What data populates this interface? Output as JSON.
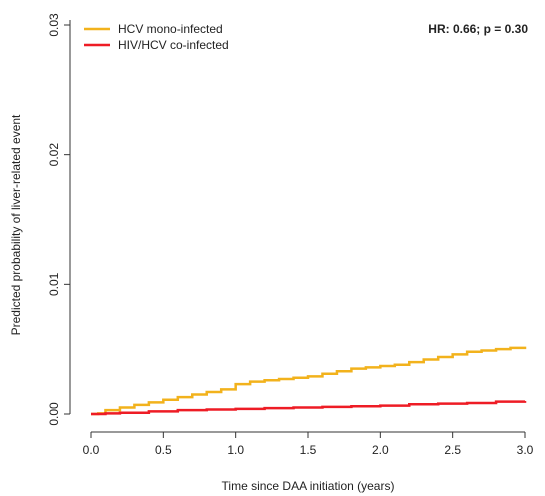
{
  "chart_data": {
    "type": "line",
    "step": true,
    "xlabel": "Time since DAA initiation (years)",
    "ylabel": "Predicted probability of liver-related event",
    "xlim": [
      0,
      3.0
    ],
    "ylim": [
      0,
      0.03
    ],
    "x_ticks": [
      0.0,
      0.5,
      1.0,
      1.5,
      2.0,
      2.5,
      3.0
    ],
    "x_tick_labels": [
      "0.0",
      "0.5",
      "1.0",
      "1.5",
      "2.0",
      "2.5",
      "3.0"
    ],
    "y_ticks": [
      0.0,
      0.01,
      0.02,
      0.03
    ],
    "y_tick_labels": [
      "0.00",
      "0.01",
      "0.02",
      "0.03"
    ],
    "grid": false,
    "legend_position": "top-left",
    "annotation": "HR: 0.66; p = 0.30",
    "series": [
      {
        "name": "HCV mono-infected",
        "color": "#f2b21c",
        "x": [
          0,
          0.05,
          0.1,
          0.2,
          0.3,
          0.4,
          0.5,
          0.6,
          0.7,
          0.8,
          0.9,
          1.0,
          1.1,
          1.2,
          1.3,
          1.4,
          1.5,
          1.6,
          1.7,
          1.8,
          1.9,
          2.0,
          2.1,
          2.2,
          2.3,
          2.4,
          2.5,
          2.6,
          2.7,
          2.8,
          2.9,
          3.0
        ],
        "y": [
          0,
          5e-05,
          0.0003,
          0.0005,
          0.0007,
          0.0009,
          0.0011,
          0.0013,
          0.0015,
          0.0017,
          0.0019,
          0.0023,
          0.0025,
          0.0026,
          0.0027,
          0.0028,
          0.0029,
          0.0031,
          0.0033,
          0.0035,
          0.0036,
          0.0037,
          0.0038,
          0.004,
          0.0042,
          0.0044,
          0.0046,
          0.0048,
          0.0049,
          0.005,
          0.0051,
          0.0052
        ]
      },
      {
        "name": "HIV/HCV co-infected",
        "color": "#ee1c25",
        "x": [
          0,
          0.1,
          0.2,
          0.4,
          0.6,
          0.8,
          1.0,
          1.2,
          1.4,
          1.6,
          1.8,
          2.0,
          2.2,
          2.4,
          2.6,
          2.8,
          3.0
        ],
        "y": [
          0,
          5e-05,
          0.0001,
          0.0002,
          0.0003,
          0.00035,
          0.0004,
          0.00045,
          0.0005,
          0.00055,
          0.0006,
          0.00065,
          0.00075,
          0.0008,
          0.00085,
          0.00095,
          0.001
        ]
      }
    ]
  }
}
